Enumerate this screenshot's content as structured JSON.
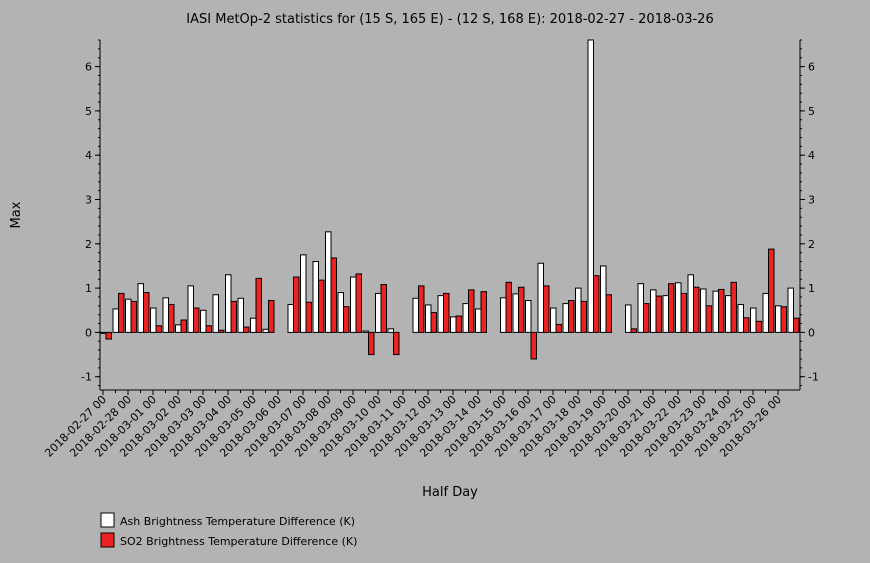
{
  "chart_data": {
    "type": "bar",
    "title": "IASI MetOp-2 statistics for (15 S, 165 E) - (12 S, 168 E): 2018-02-27 - 2018-03-26",
    "xlabel": "Half Day",
    "ylabel": "Max",
    "ylim": [
      -1.3,
      6.6
    ],
    "yticks": [
      -1,
      0,
      1,
      2,
      3,
      4,
      5,
      6
    ],
    "grid": false,
    "legend_position": "bottom-left",
    "tick_labels": [
      "2018-02-27 00",
      "2018-02-28 00",
      "2018-03-01 00",
      "2018-03-02 00",
      "2018-03-03 00",
      "2018-03-04 00",
      "2018-03-05 00",
      "2018-03-06 00",
      "2018-03-07 00",
      "2018-03-08 00",
      "2018-03-09 00",
      "2018-03-10 00",
      "2018-03-11 00",
      "2018-03-12 00",
      "2018-03-13 00",
      "2018-03-14 00",
      "2018-03-15 00",
      "2018-03-16 00",
      "2018-03-17 00",
      "2018-03-18 00",
      "2018-03-19 00",
      "2018-03-20 00",
      "2018-03-21 00",
      "2018-03-22 00",
      "2018-03-23 00",
      "2018-03-24 00",
      "2018-03-25 00",
      "2018-03-26 00"
    ],
    "series": [
      {
        "name": "Ash Brightness Temperature Difference (K)",
        "color": "#ffffff",
        "values": [
          -0.02,
          0.53,
          0.75,
          1.1,
          0.55,
          0.78,
          0.17,
          1.05,
          0.5,
          0.85,
          1.3,
          0.77,
          0.32,
          0.07,
          null,
          0.63,
          1.75,
          1.6,
          2.27,
          0.9,
          1.25,
          0.03,
          0.88,
          0.08,
          null,
          0.77,
          0.62,
          0.83,
          0.35,
          0.65,
          0.53,
          null,
          0.78,
          0.87,
          0.72,
          1.56,
          0.55,
          0.65,
          1.0,
          6.6,
          1.5,
          null,
          0.62,
          1.1,
          0.96,
          0.83,
          1.12,
          1.3,
          0.98,
          0.93,
          0.83,
          0.63,
          0.55,
          0.88,
          0.6,
          1.0
        ]
      },
      {
        "name": "SO2 Brightness Temperature Difference (K)",
        "color": "#ee2222",
        "values": [
          -0.15,
          0.88,
          0.7,
          0.9,
          0.15,
          0.63,
          0.28,
          0.55,
          0.15,
          0.05,
          0.7,
          0.12,
          1.22,
          0.72,
          null,
          1.25,
          0.68,
          1.18,
          1.68,
          0.58,
          1.32,
          -0.5,
          1.08,
          -0.5,
          null,
          1.05,
          0.45,
          0.88,
          0.37,
          0.96,
          0.92,
          null,
          1.13,
          1.02,
          -0.6,
          1.05,
          0.18,
          0.72,
          0.7,
          1.28,
          0.85,
          null,
          0.08,
          0.65,
          0.82,
          1.1,
          0.88,
          1.02,
          0.6,
          0.97,
          1.13,
          0.33,
          0.25,
          1.88,
          0.58,
          0.32
        ]
      }
    ]
  }
}
